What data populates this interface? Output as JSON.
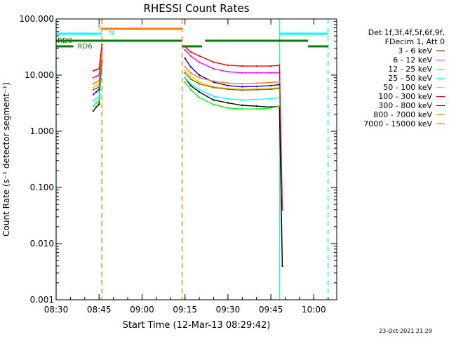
{
  "chart_data": {
    "type": "line",
    "title": "RHESSI Count Rates",
    "xlabel": "Start Time (12-Mar-13 08:29:42)",
    "ylabel": "Count Rate (s⁻¹ detector segment⁻¹)",
    "y_scale": "log",
    "ylim": [
      0.001,
      100
    ],
    "xlim": [
      "08:30",
      "10:08"
    ],
    "x_ticks": [
      "08:30",
      "08:45",
      "09:00",
      "09:15",
      "09:30",
      "09:45",
      "10:00"
    ],
    "y_ticks": [
      "0.001",
      "0.010",
      "0.100",
      "1.000",
      "10.000",
      "100.000"
    ],
    "legend": {
      "header": [
        "Det 1f,3f,4f,5f,6f,9f,",
        "FDecim 1, Att 0"
      ],
      "placement": "right"
    },
    "series": [
      {
        "name": "3 - 6 keV",
        "color": "#000000",
        "x": [
          "08:43",
          "08:44",
          "08:45",
          "08:46",
          "09:15",
          "09:17",
          "09:20",
          "09:25",
          "09:30",
          "09:35",
          "09:40",
          "09:45",
          "09:48",
          "09:49"
        ],
        "y": [
          2.3,
          2.7,
          3.0,
          20,
          9.0,
          6.5,
          5.0,
          3.6,
          3.2,
          2.9,
          2.8,
          2.7,
          2.8,
          0.004
        ]
      },
      {
        "name": "6 - 12 keV",
        "color": "#ff00ff",
        "x": [
          "08:43",
          "08:44",
          "08:45",
          "08:46",
          "09:15",
          "09:17",
          "09:20",
          "09:25",
          "09:30",
          "09:35",
          "09:40",
          "09:45",
          "09:48"
        ],
        "y": [
          9.0,
          9.5,
          10.0,
          30,
          28,
          22,
          17,
          13,
          11.5,
          11,
          11,
          11,
          11
        ]
      },
      {
        "name": "12 - 25 keV",
        "color": "#00ff00",
        "x": [
          "08:43",
          "08:44",
          "08:45",
          "08:46",
          "09:15",
          "09:17",
          "09:20",
          "09:25",
          "09:30",
          "09:35",
          "09:40",
          "09:45",
          "09:48"
        ],
        "y": [
          2.8,
          3.2,
          3.5,
          15,
          7.5,
          5.5,
          4.0,
          3.0,
          2.6,
          2.5,
          2.5,
          2.6,
          2.8
        ]
      },
      {
        "name": "25 - 50 keV",
        "color": "#00ffff",
        "x": [
          "08:43",
          "08:44",
          "08:45",
          "08:46",
          "09:15",
          "09:17",
          "09:20",
          "09:25",
          "09:30",
          "09:35",
          "09:40",
          "09:45",
          "09:48"
        ],
        "y": [
          3.5,
          3.8,
          4.2,
          16,
          9.0,
          7.0,
          5.5,
          4.2,
          3.8,
          3.6,
          3.7,
          3.8,
          4.0
        ]
      },
      {
        "name": "50 - 100 keV",
        "color": "#ffcc00",
        "x": [
          "08:43",
          "08:44",
          "08:45",
          "08:46",
          "09:15",
          "09:17",
          "09:20",
          "09:25",
          "09:30",
          "09:35",
          "09:40",
          "09:45",
          "09:48"
        ],
        "y": [
          6.0,
          6.5,
          7.0,
          20,
          12,
          9.5,
          7.5,
          6.2,
          5.8,
          5.6,
          5.7,
          5.8,
          6.0
        ]
      },
      {
        "name": "100 - 300 keV",
        "color": "#ff0000",
        "x": [
          "08:43",
          "08:44",
          "08:45",
          "08:46",
          "09:15",
          "09:17",
          "09:20",
          "09:25",
          "09:30",
          "09:35",
          "09:40",
          "09:45",
          "09:48",
          "09:49"
        ],
        "y": [
          12.0,
          12.5,
          13.0,
          35,
          32,
          26,
          22,
          17,
          15,
          14.5,
          14.5,
          14.5,
          15,
          0.04
        ]
      },
      {
        "name": "300 - 800 keV",
        "color": "#0000ff",
        "x": [
          "08:43",
          "08:44",
          "08:45",
          "08:46",
          "09:15",
          "09:17",
          "09:20",
          "09:25",
          "09:30",
          "09:35",
          "09:40",
          "09:45",
          "09:48"
        ],
        "y": [
          4.5,
          5.0,
          5.5,
          18,
          20,
          14,
          10,
          7.5,
          6.5,
          6.2,
          6.3,
          6.5,
          6.8
        ]
      },
      {
        "name": "800 - 7000 keV",
        "color": "#ff8000",
        "x": [
          "08:43",
          "08:44",
          "08:45",
          "08:46",
          "09:15",
          "09:17",
          "09:20",
          "09:25",
          "09:30",
          "09:35",
          "09:40",
          "09:45",
          "09:48"
        ],
        "y": [
          7.0,
          7.5,
          8.0,
          24,
          14,
          11,
          9.0,
          7.8,
          7.2,
          7.0,
          7.2,
          7.4,
          7.6
        ]
      },
      {
        "name": "7000 - 15000 keV",
        "color": "#996600",
        "x": [
          "08:43",
          "08:44",
          "08:45",
          "08:46",
          "09:15",
          "09:17",
          "09:20",
          "09:25",
          "09:30",
          "09:35",
          "09:40",
          "09:45",
          "09:48"
        ],
        "y": [
          5.5,
          5.8,
          6.2,
          18,
          11,
          8.5,
          7.0,
          6.0,
          5.6,
          5.4,
          5.5,
          5.6,
          5.8
        ]
      }
    ],
    "annotations": [
      {
        "text": "S",
        "color": "#ff8000"
      },
      {
        "text": "N",
        "color": "#00ffff"
      },
      {
        "text": "RD0",
        "color": "#008000"
      },
      {
        "text": "RD6",
        "color": "#008000"
      }
    ],
    "flag_bars": [
      {
        "label": "S",
        "color": "#ff8000",
        "x_start": "08:46",
        "x_end": "09:14"
      },
      {
        "label": "N",
        "color": "#00ffff",
        "x_start": "08:30",
        "x_end": "08:46"
      },
      {
        "label": "N",
        "color": "#00ffff",
        "x_start": "09:48",
        "x_end": "10:05"
      },
      {
        "label": "RD0",
        "color": "#008000",
        "x_start": "08:30",
        "x_end": "09:14"
      },
      {
        "label": "RD0",
        "color": "#008000",
        "x_start": "09:22",
        "x_end": "09:58"
      },
      {
        "label": "RD6",
        "color": "#008000",
        "x_start": "08:30",
        "x_end": "08:36"
      },
      {
        "label": "RD6",
        "color": "#008000",
        "x_start": "09:14",
        "x_end": "09:21"
      },
      {
        "label": "RD6",
        "color": "#008000",
        "x_start": "09:58",
        "x_end": "10:05"
      }
    ],
    "vertical_markers": [
      {
        "x": "08:30",
        "color": "#00ffff",
        "style": "solid"
      },
      {
        "x": "08:46",
        "color": "#00ffff",
        "style": "dashed"
      },
      {
        "x": "08:46",
        "color": "#ff8000",
        "style": "dashed"
      },
      {
        "x": "09:14",
        "color": "#ff8000",
        "style": "dashed"
      },
      {
        "x": "09:48",
        "color": "#00ffff",
        "style": "solid"
      },
      {
        "x": "10:05",
        "color": "#00ffff",
        "style": "dashed"
      }
    ],
    "grid": false
  },
  "footer": {
    "timestamp": "23-Oct-2021 21:29"
  }
}
